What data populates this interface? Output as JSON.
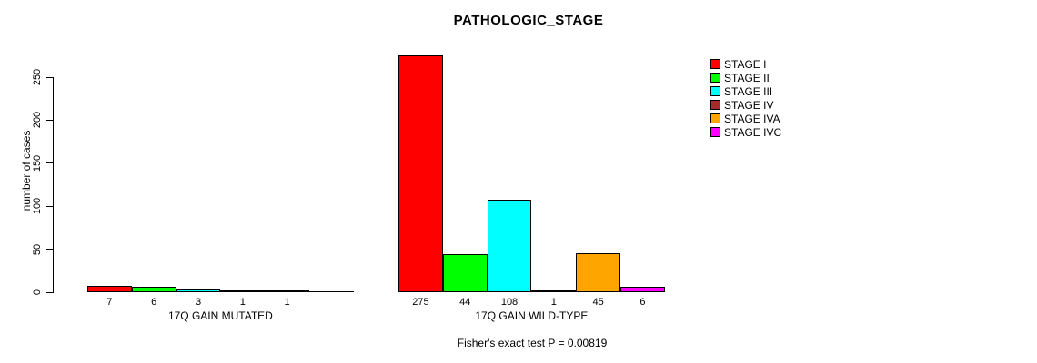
{
  "chart_data": {
    "type": "bar",
    "title": "PATHOLOGIC_STAGE",
    "ylabel": "number of cases",
    "xlabel": "",
    "ylim": [
      0,
      250
    ],
    "yticks": [
      0,
      50,
      100,
      150,
      200,
      250
    ],
    "grid": false,
    "legend_position": "right",
    "legend": [
      {
        "label": "STAGE I",
        "color": "#FF0000"
      },
      {
        "label": "STAGE II",
        "color": "#00FF00"
      },
      {
        "label": "STAGE III",
        "color": "#00FFFF"
      },
      {
        "label": "STAGE IV",
        "color": "#A52A2A"
      },
      {
        "label": "STAGE IVA",
        "color": "#FFA500"
      },
      {
        "label": "STAGE IVC",
        "color": "#FF00FF"
      }
    ],
    "groups": [
      {
        "label": "17Q GAIN MUTATED",
        "values": [
          7,
          6,
          3,
          1,
          1,
          0
        ],
        "bar_labels": [
          "7",
          "6",
          "3",
          "1",
          "1",
          ""
        ]
      },
      {
        "label": "17Q GAIN WILD-TYPE",
        "values": [
          275,
          44,
          108,
          1,
          45,
          6
        ],
        "bar_labels": [
          "275",
          "44",
          "108",
          "1",
          "45",
          "6"
        ]
      }
    ],
    "annotation": "Fisher's exact test P = 0.00819"
  }
}
